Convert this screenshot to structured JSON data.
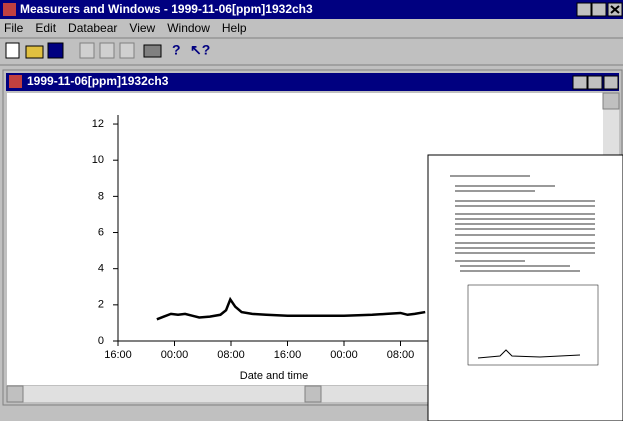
{
  "window": {
    "title": "Measurers and Windows - 1999-11-06[ppm]1932ch3",
    "menu": [
      "File",
      "Edit",
      "Databear",
      "View",
      "Window",
      "Help"
    ]
  },
  "document": {
    "title": "1999-11-06[ppm]1932ch3"
  },
  "chart_data": {
    "type": "line",
    "x_label": "Date and time",
    "x": [
      5.5,
      6.5,
      7.5,
      8.5,
      9.5,
      10.5,
      11.5,
      13,
      14.5,
      15.3,
      15.9,
      16.6,
      17.5,
      19,
      21,
      24,
      28,
      32,
      36,
      38,
      40,
      41,
      42,
      43.5
    ],
    "series": [
      {
        "color": "#000000",
        "values": [
          1.2,
          1.35,
          1.5,
          1.45,
          1.5,
          1.4,
          1.3,
          1.35,
          1.45,
          1.7,
          2.3,
          1.9,
          1.6,
          1.5,
          1.45,
          1.4,
          1.4,
          1.4,
          1.45,
          1.5,
          1.55,
          1.45,
          1.5,
          1.6
        ]
      }
    ],
    "xlim": [
      0,
      64
    ],
    "ylim": [
      0,
      12.5
    ],
    "xticks": [
      {
        "value": 0,
        "label": "16:00"
      },
      {
        "value": 8,
        "label": "00:00"
      },
      {
        "value": 16,
        "label": "08:00"
      },
      {
        "value": 24,
        "label": "16:00"
      },
      {
        "value": 32,
        "label": "00:00"
      },
      {
        "value": 40,
        "label": "08:00"
      }
    ],
    "yticks": [
      0,
      2,
      4,
      6,
      8,
      10,
      12
    ]
  }
}
